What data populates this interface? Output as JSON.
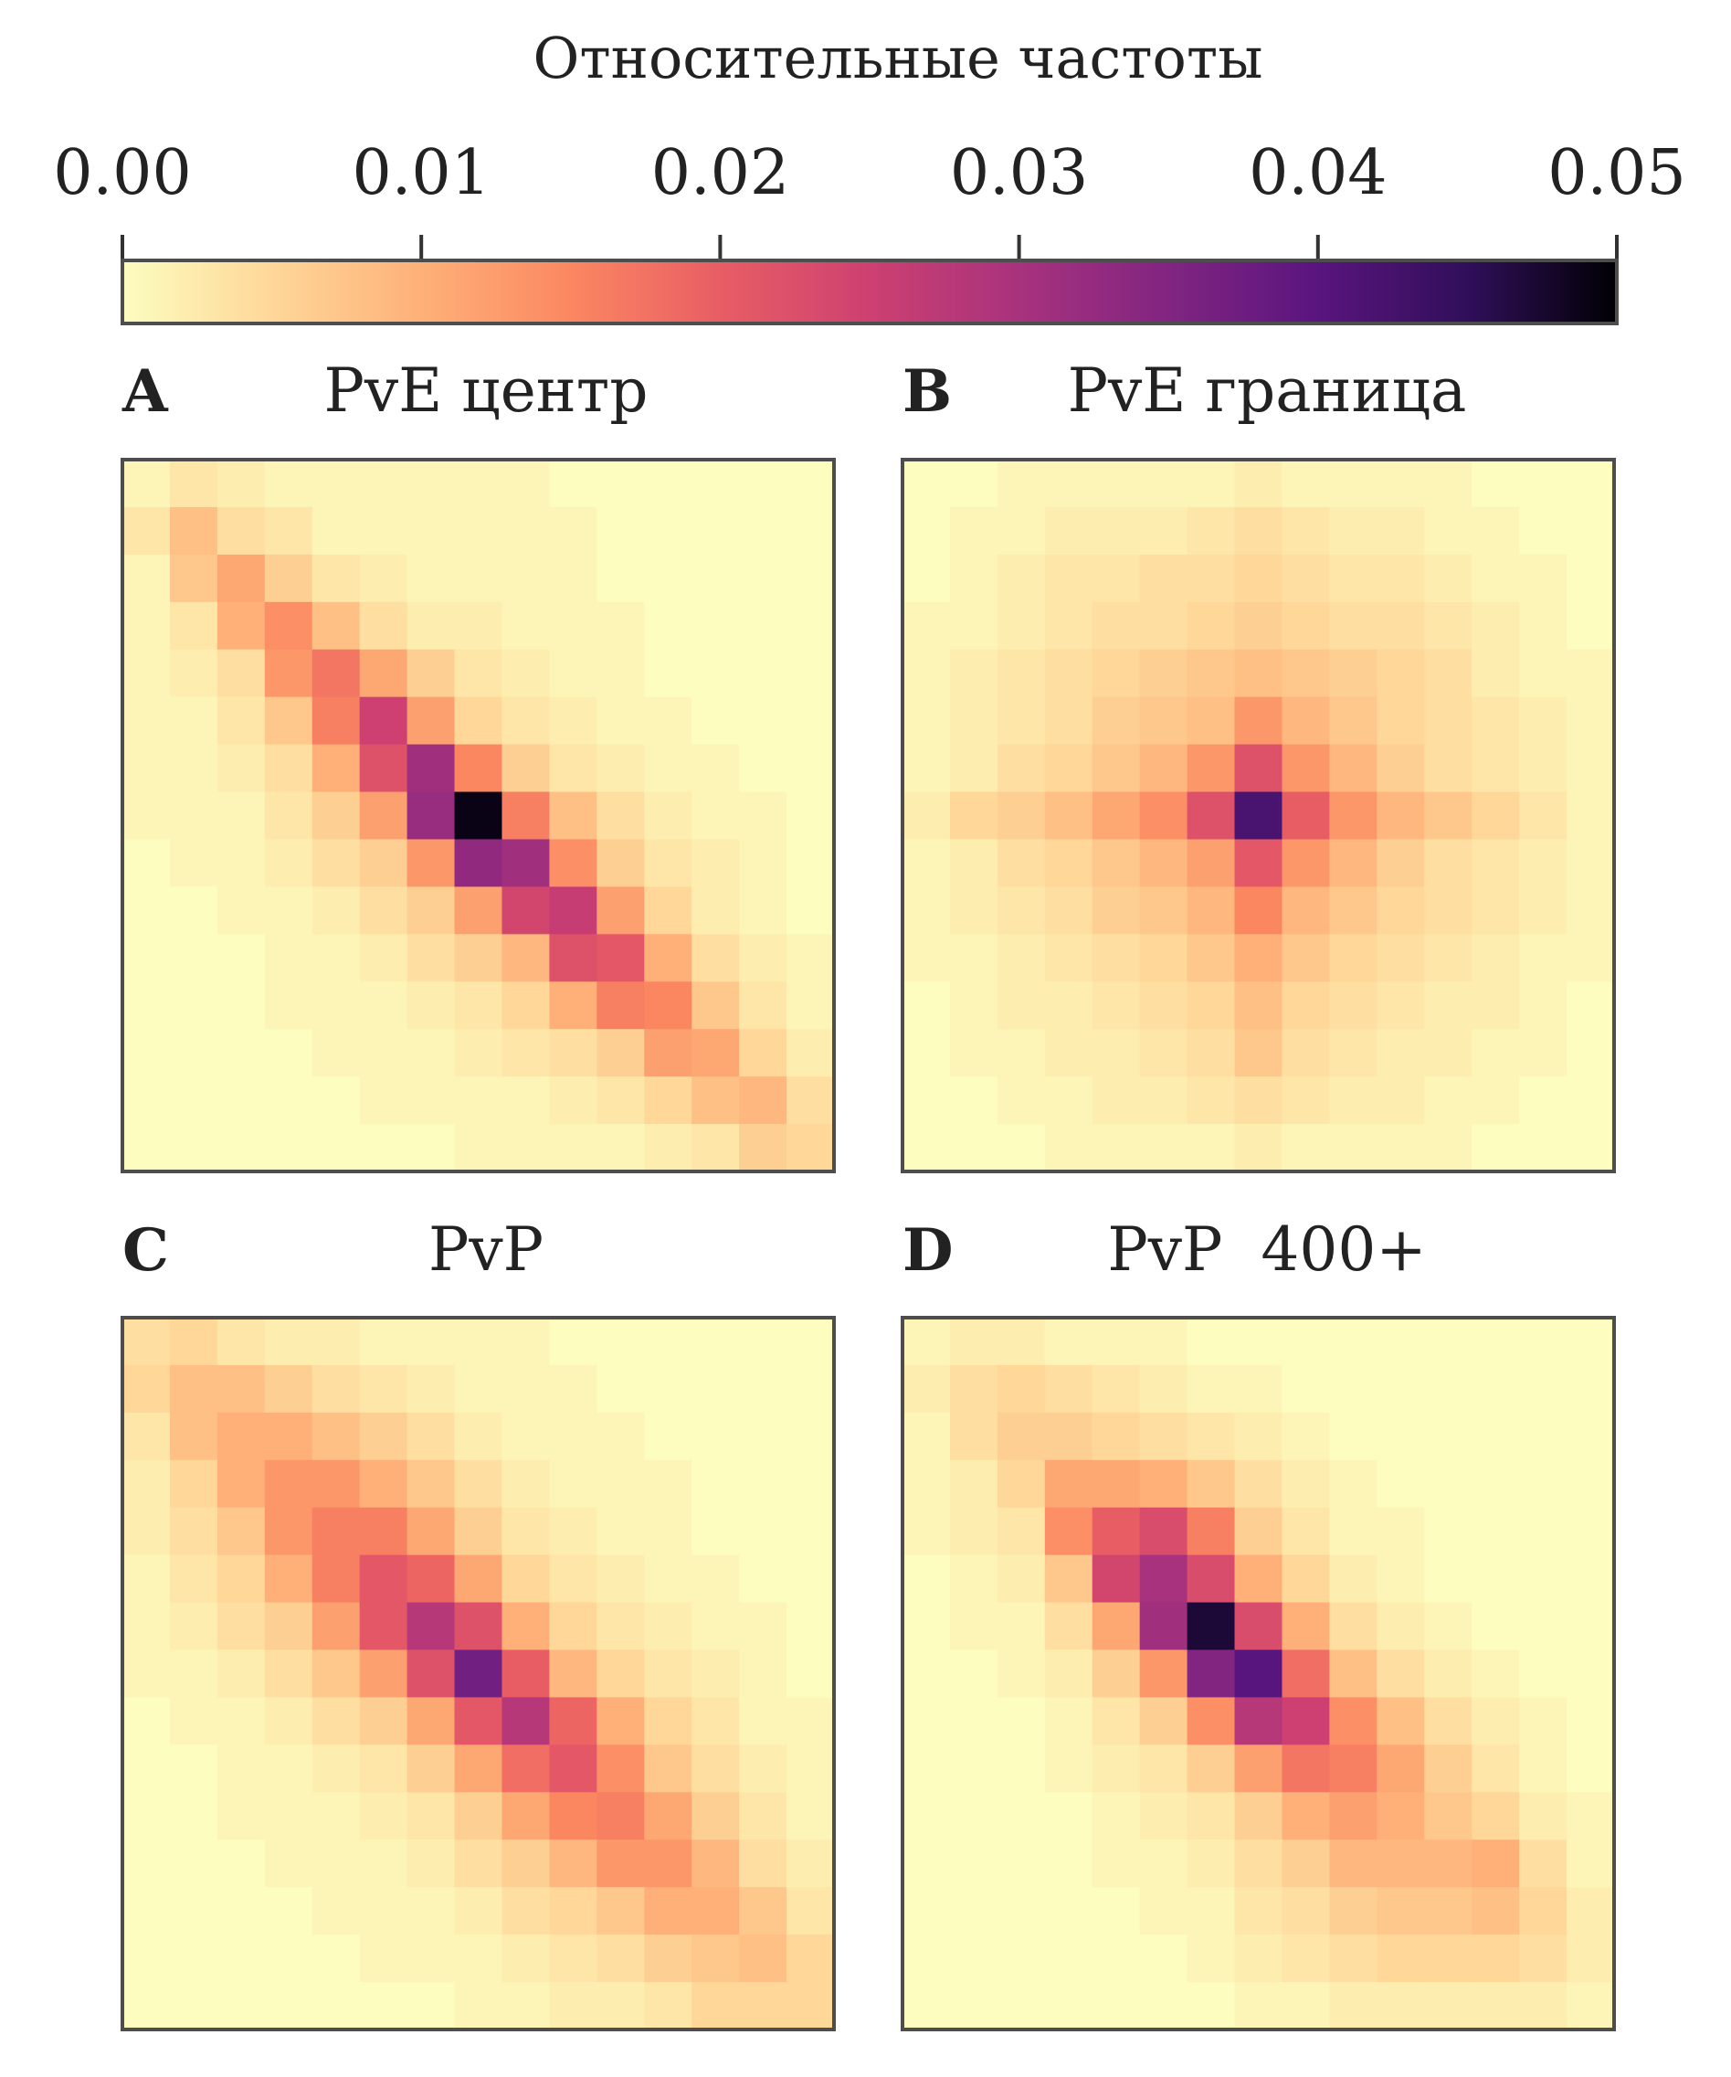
{
  "colorbar": {
    "label": "Относительные частоты",
    "vmin": 0.0,
    "vmax": 0.05,
    "ticks": [
      "0.00",
      "0.01",
      "0.02",
      "0.03",
      "0.04",
      "0.05"
    ],
    "colormap": "magma_r"
  },
  "chart_data": [
    {
      "type": "heatmap",
      "panel_label": "A",
      "title": "PvE центр",
      "rows": 15,
      "cols": 15,
      "values": [
        [
          0.001,
          0.003,
          0.002,
          0.001,
          0.001,
          0.001,
          0.001,
          0.001,
          0.001,
          0.0,
          0.0,
          0.0,
          0.0,
          0.0,
          0.0
        ],
        [
          0.003,
          0.008,
          0.004,
          0.003,
          0.001,
          0.001,
          0.001,
          0.001,
          0.001,
          0.001,
          0.0,
          0.0,
          0.0,
          0.0,
          0.0
        ],
        [
          0.001,
          0.007,
          0.011,
          0.006,
          0.003,
          0.002,
          0.001,
          0.001,
          0.001,
          0.001,
          0.0,
          0.0,
          0.0,
          0.0,
          0.0
        ],
        [
          0.001,
          0.003,
          0.01,
          0.014,
          0.008,
          0.004,
          0.002,
          0.002,
          0.001,
          0.001,
          0.001,
          0.0,
          0.0,
          0.0,
          0.0
        ],
        [
          0.001,
          0.002,
          0.004,
          0.013,
          0.017,
          0.011,
          0.006,
          0.003,
          0.002,
          0.001,
          0.001,
          0.0,
          0.0,
          0.0,
          0.0
        ],
        [
          0.001,
          0.001,
          0.003,
          0.007,
          0.016,
          0.025,
          0.012,
          0.005,
          0.003,
          0.002,
          0.001,
          0.001,
          0.0,
          0.0,
          0.0
        ],
        [
          0.001,
          0.001,
          0.002,
          0.004,
          0.01,
          0.022,
          0.031,
          0.015,
          0.006,
          0.003,
          0.002,
          0.001,
          0.001,
          0.0,
          0.0
        ],
        [
          0.001,
          0.001,
          0.001,
          0.003,
          0.006,
          0.012,
          0.032,
          0.049,
          0.016,
          0.008,
          0.004,
          0.002,
          0.001,
          0.001,
          0.0
        ],
        [
          0.0,
          0.001,
          0.001,
          0.002,
          0.004,
          0.006,
          0.013,
          0.033,
          0.031,
          0.014,
          0.006,
          0.003,
          0.002,
          0.001,
          0.0
        ],
        [
          0.0,
          0.0,
          0.001,
          0.001,
          0.002,
          0.004,
          0.006,
          0.012,
          0.024,
          0.026,
          0.012,
          0.005,
          0.002,
          0.001,
          0.0
        ],
        [
          0.0,
          0.0,
          0.0,
          0.001,
          0.001,
          0.002,
          0.004,
          0.006,
          0.009,
          0.022,
          0.021,
          0.01,
          0.004,
          0.002,
          0.001
        ],
        [
          0.0,
          0.0,
          0.0,
          0.001,
          0.001,
          0.001,
          0.002,
          0.003,
          0.005,
          0.01,
          0.016,
          0.015,
          0.007,
          0.003,
          0.001
        ],
        [
          0.0,
          0.0,
          0.0,
          0.0,
          0.001,
          0.001,
          0.001,
          0.002,
          0.003,
          0.004,
          0.006,
          0.012,
          0.011,
          0.005,
          0.002
        ],
        [
          0.0,
          0.0,
          0.0,
          0.0,
          0.0,
          0.001,
          0.001,
          0.001,
          0.001,
          0.002,
          0.003,
          0.005,
          0.008,
          0.009,
          0.004
        ],
        [
          0.0,
          0.0,
          0.0,
          0.0,
          0.0,
          0.0,
          0.0,
          0.001,
          0.001,
          0.001,
          0.001,
          0.002,
          0.003,
          0.006,
          0.005
        ]
      ]
    },
    {
      "type": "heatmap",
      "panel_label": "B",
      "title": "PvE граница",
      "rows": 15,
      "cols": 15,
      "values": [
        [
          0.0,
          0.0,
          0.001,
          0.001,
          0.001,
          0.001,
          0.001,
          0.002,
          0.001,
          0.001,
          0.001,
          0.001,
          0.0,
          0.0,
          0.0
        ],
        [
          0.0,
          0.001,
          0.001,
          0.002,
          0.002,
          0.002,
          0.003,
          0.004,
          0.003,
          0.002,
          0.002,
          0.001,
          0.001,
          0.0,
          0.0
        ],
        [
          0.0,
          0.001,
          0.002,
          0.003,
          0.003,
          0.004,
          0.004,
          0.005,
          0.004,
          0.003,
          0.003,
          0.002,
          0.001,
          0.001,
          0.0
        ],
        [
          0.001,
          0.001,
          0.002,
          0.003,
          0.004,
          0.004,
          0.005,
          0.006,
          0.005,
          0.004,
          0.004,
          0.003,
          0.002,
          0.001,
          0.0
        ],
        [
          0.001,
          0.002,
          0.003,
          0.004,
          0.005,
          0.006,
          0.007,
          0.008,
          0.007,
          0.006,
          0.005,
          0.004,
          0.002,
          0.001,
          0.001
        ],
        [
          0.001,
          0.002,
          0.003,
          0.004,
          0.006,
          0.007,
          0.008,
          0.013,
          0.009,
          0.007,
          0.005,
          0.004,
          0.003,
          0.002,
          0.001
        ],
        [
          0.001,
          0.002,
          0.004,
          0.005,
          0.007,
          0.009,
          0.013,
          0.022,
          0.013,
          0.009,
          0.006,
          0.004,
          0.003,
          0.002,
          0.001
        ],
        [
          0.002,
          0.005,
          0.006,
          0.008,
          0.011,
          0.014,
          0.022,
          0.042,
          0.02,
          0.013,
          0.009,
          0.007,
          0.005,
          0.003,
          0.001
        ],
        [
          0.001,
          0.002,
          0.004,
          0.005,
          0.007,
          0.009,
          0.012,
          0.021,
          0.013,
          0.009,
          0.006,
          0.004,
          0.003,
          0.002,
          0.001
        ],
        [
          0.001,
          0.002,
          0.003,
          0.004,
          0.006,
          0.007,
          0.009,
          0.015,
          0.009,
          0.007,
          0.005,
          0.004,
          0.003,
          0.002,
          0.001
        ],
        [
          0.001,
          0.001,
          0.002,
          0.003,
          0.004,
          0.005,
          0.007,
          0.01,
          0.007,
          0.005,
          0.004,
          0.003,
          0.002,
          0.001,
          0.001
        ],
        [
          0.0,
          0.001,
          0.002,
          0.002,
          0.003,
          0.004,
          0.005,
          0.008,
          0.005,
          0.004,
          0.003,
          0.002,
          0.002,
          0.001,
          0.0
        ],
        [
          0.0,
          0.001,
          0.001,
          0.002,
          0.002,
          0.003,
          0.004,
          0.007,
          0.004,
          0.003,
          0.002,
          0.002,
          0.001,
          0.001,
          0.0
        ],
        [
          0.0,
          0.0,
          0.001,
          0.001,
          0.002,
          0.002,
          0.003,
          0.004,
          0.003,
          0.002,
          0.002,
          0.001,
          0.001,
          0.0,
          0.0
        ],
        [
          0.0,
          0.0,
          0.0,
          0.001,
          0.001,
          0.001,
          0.001,
          0.002,
          0.001,
          0.001,
          0.001,
          0.001,
          0.0,
          0.0,
          0.0
        ]
      ]
    },
    {
      "type": "heatmap",
      "panel_label": "C",
      "title": "PvP",
      "rows": 15,
      "cols": 15,
      "values": [
        [
          0.004,
          0.005,
          0.003,
          0.002,
          0.002,
          0.001,
          0.001,
          0.001,
          0.001,
          0.0,
          0.0,
          0.0,
          0.0,
          0.0,
          0.0
        ],
        [
          0.005,
          0.008,
          0.008,
          0.006,
          0.004,
          0.003,
          0.002,
          0.001,
          0.001,
          0.001,
          0.0,
          0.0,
          0.0,
          0.0,
          0.0
        ],
        [
          0.003,
          0.008,
          0.01,
          0.01,
          0.008,
          0.006,
          0.004,
          0.002,
          0.001,
          0.001,
          0.001,
          0.0,
          0.0,
          0.0,
          0.0
        ],
        [
          0.002,
          0.005,
          0.01,
          0.013,
          0.013,
          0.01,
          0.007,
          0.004,
          0.002,
          0.001,
          0.001,
          0.001,
          0.0,
          0.0,
          0.0
        ],
        [
          0.002,
          0.004,
          0.007,
          0.013,
          0.016,
          0.016,
          0.011,
          0.006,
          0.003,
          0.002,
          0.001,
          0.001,
          0.0,
          0.0,
          0.0
        ],
        [
          0.001,
          0.003,
          0.005,
          0.01,
          0.016,
          0.021,
          0.019,
          0.011,
          0.005,
          0.003,
          0.002,
          0.001,
          0.001,
          0.0,
          0.0
        ],
        [
          0.001,
          0.002,
          0.004,
          0.006,
          0.012,
          0.021,
          0.028,
          0.022,
          0.01,
          0.005,
          0.003,
          0.002,
          0.001,
          0.001,
          0.0
        ],
        [
          0.001,
          0.001,
          0.002,
          0.004,
          0.007,
          0.012,
          0.022,
          0.037,
          0.02,
          0.009,
          0.005,
          0.003,
          0.002,
          0.001,
          0.0
        ],
        [
          0.0,
          0.001,
          0.001,
          0.002,
          0.004,
          0.006,
          0.011,
          0.021,
          0.028,
          0.019,
          0.01,
          0.005,
          0.003,
          0.001,
          0.001
        ],
        [
          0.0,
          0.0,
          0.001,
          0.001,
          0.002,
          0.003,
          0.006,
          0.011,
          0.018,
          0.021,
          0.014,
          0.007,
          0.004,
          0.002,
          0.001
        ],
        [
          0.0,
          0.0,
          0.001,
          0.001,
          0.001,
          0.002,
          0.003,
          0.006,
          0.011,
          0.015,
          0.016,
          0.011,
          0.006,
          0.003,
          0.001
        ],
        [
          0.0,
          0.0,
          0.0,
          0.001,
          0.001,
          0.001,
          0.002,
          0.004,
          0.006,
          0.009,
          0.013,
          0.013,
          0.009,
          0.004,
          0.002
        ],
        [
          0.0,
          0.0,
          0.0,
          0.0,
          0.001,
          0.001,
          0.001,
          0.002,
          0.004,
          0.005,
          0.007,
          0.01,
          0.01,
          0.007,
          0.003
        ],
        [
          0.0,
          0.0,
          0.0,
          0.0,
          0.0,
          0.001,
          0.001,
          0.001,
          0.002,
          0.003,
          0.004,
          0.006,
          0.007,
          0.008,
          0.005
        ],
        [
          0.0,
          0.0,
          0.0,
          0.0,
          0.0,
          0.0,
          0.0,
          0.001,
          0.001,
          0.002,
          0.002,
          0.003,
          0.005,
          0.005,
          0.005
        ]
      ]
    },
    {
      "type": "heatmap",
      "panel_label": "D",
      "title": "PvP  400+",
      "rows": 15,
      "cols": 15,
      "values": [
        [
          0.001,
          0.002,
          0.002,
          0.001,
          0.001,
          0.001,
          0.0,
          0.0,
          0.0,
          0.0,
          0.0,
          0.0,
          0.0,
          0.0,
          0.0
        ],
        [
          0.002,
          0.004,
          0.005,
          0.004,
          0.003,
          0.002,
          0.001,
          0.001,
          0.0,
          0.0,
          0.0,
          0.0,
          0.0,
          0.0,
          0.0
        ],
        [
          0.001,
          0.004,
          0.006,
          0.006,
          0.005,
          0.004,
          0.003,
          0.002,
          0.001,
          0.0,
          0.0,
          0.0,
          0.0,
          0.0,
          0.0
        ],
        [
          0.001,
          0.002,
          0.005,
          0.011,
          0.011,
          0.01,
          0.007,
          0.004,
          0.002,
          0.001,
          0.0,
          0.0,
          0.0,
          0.0,
          0.0
        ],
        [
          0.001,
          0.002,
          0.003,
          0.014,
          0.02,
          0.023,
          0.016,
          0.006,
          0.003,
          0.001,
          0.001,
          0.0,
          0.0,
          0.0,
          0.0
        ],
        [
          0.0,
          0.001,
          0.002,
          0.007,
          0.024,
          0.03,
          0.023,
          0.01,
          0.005,
          0.002,
          0.001,
          0.0,
          0.0,
          0.0,
          0.0
        ],
        [
          0.0,
          0.001,
          0.001,
          0.004,
          0.011,
          0.031,
          0.047,
          0.023,
          0.01,
          0.004,
          0.002,
          0.001,
          0.0,
          0.0,
          0.0
        ],
        [
          0.0,
          0.0,
          0.001,
          0.002,
          0.006,
          0.013,
          0.035,
          0.04,
          0.018,
          0.008,
          0.004,
          0.002,
          0.001,
          0.0,
          0.0
        ],
        [
          0.0,
          0.0,
          0.0,
          0.001,
          0.003,
          0.006,
          0.014,
          0.028,
          0.025,
          0.014,
          0.008,
          0.004,
          0.002,
          0.001,
          0.0
        ],
        [
          0.0,
          0.0,
          0.0,
          0.001,
          0.002,
          0.003,
          0.006,
          0.012,
          0.017,
          0.016,
          0.011,
          0.006,
          0.003,
          0.001,
          0.0
        ],
        [
          0.0,
          0.0,
          0.0,
          0.0,
          0.001,
          0.002,
          0.003,
          0.006,
          0.01,
          0.012,
          0.01,
          0.007,
          0.005,
          0.002,
          0.001
        ],
        [
          0.0,
          0.0,
          0.0,
          0.0,
          0.001,
          0.001,
          0.002,
          0.004,
          0.006,
          0.009,
          0.009,
          0.009,
          0.01,
          0.004,
          0.001
        ],
        [
          0.0,
          0.0,
          0.0,
          0.0,
          0.0,
          0.001,
          0.001,
          0.003,
          0.004,
          0.006,
          0.007,
          0.007,
          0.008,
          0.005,
          0.002
        ],
        [
          0.0,
          0.0,
          0.0,
          0.0,
          0.0,
          0.0,
          0.001,
          0.002,
          0.003,
          0.004,
          0.005,
          0.005,
          0.005,
          0.004,
          0.002
        ],
        [
          0.0,
          0.0,
          0.0,
          0.0,
          0.0,
          0.0,
          0.0,
          0.001,
          0.001,
          0.002,
          0.002,
          0.002,
          0.002,
          0.002,
          0.001
        ]
      ]
    }
  ]
}
